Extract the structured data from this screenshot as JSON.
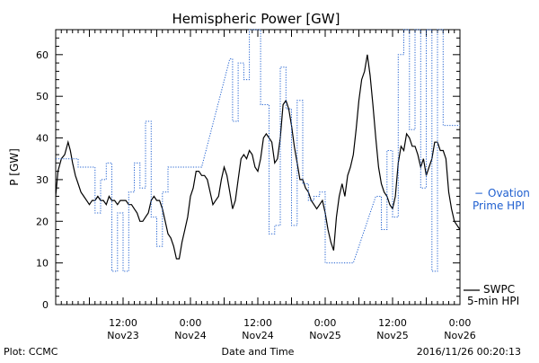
{
  "chart_data": {
    "type": "line",
    "title": "Hemispheric Power [GW]",
    "ylabel": "P [GW]",
    "xlabel": "Date and Time",
    "ylim": [
      0,
      66
    ],
    "xlim_hours": [
      0,
      72
    ],
    "yticks": [
      0,
      10,
      20,
      30,
      40,
      50,
      60
    ],
    "xticks": [
      {
        "hour": 12,
        "time": "12:00",
        "date": "Nov23"
      },
      {
        "hour": 24,
        "time": "0:00",
        "date": "Nov24"
      },
      {
        "hour": 36,
        "time": "12:00",
        "date": "Nov24"
      },
      {
        "hour": 48,
        "time": "0:00",
        "date": "Nov25"
      },
      {
        "hour": 60,
        "time": "12:00",
        "date": "Nov25"
      },
      {
        "hour": 72,
        "time": "0:00",
        "date": "Nov26"
      }
    ],
    "series": [
      {
        "name": "SWPC 5-min HPI",
        "color": "#000000",
        "style": "solid",
        "points": [
          [
            0,
            26
          ],
          [
            0.4,
            32
          ],
          [
            1,
            35
          ],
          [
            1.6,
            36
          ],
          [
            2.2,
            39
          ],
          [
            2.6,
            37
          ],
          [
            3,
            34
          ],
          [
            3.5,
            31
          ],
          [
            4,
            29
          ],
          [
            4.5,
            27
          ],
          [
            5,
            26
          ],
          [
            5.5,
            25
          ],
          [
            6,
            24
          ],
          [
            6.5,
            25
          ],
          [
            7,
            25
          ],
          [
            7.5,
            26
          ],
          [
            8,
            25
          ],
          [
            8.5,
            25
          ],
          [
            9,
            24
          ],
          [
            9.5,
            26
          ],
          [
            10,
            25
          ],
          [
            10.5,
            25
          ],
          [
            11,
            24
          ],
          [
            11.5,
            25
          ],
          [
            12,
            25
          ],
          [
            12.5,
            25
          ],
          [
            13,
            24
          ],
          [
            13.5,
            24
          ],
          [
            14,
            23
          ],
          [
            14.5,
            22
          ],
          [
            15,
            20
          ],
          [
            15.5,
            20
          ],
          [
            16,
            21
          ],
          [
            16.5,
            22
          ],
          [
            17,
            25
          ],
          [
            17.5,
            26
          ],
          [
            18,
            25
          ],
          [
            18.5,
            25
          ],
          [
            19,
            23
          ],
          [
            19.5,
            20
          ],
          [
            20,
            17
          ],
          [
            20.5,
            16
          ],
          [
            21,
            14
          ],
          [
            21.5,
            11
          ],
          [
            22,
            11
          ],
          [
            22.5,
            15
          ],
          [
            23,
            18
          ],
          [
            23.5,
            21
          ],
          [
            24,
            26
          ],
          [
            24.5,
            28
          ],
          [
            25,
            32
          ],
          [
            25.5,
            32
          ],
          [
            26,
            31
          ],
          [
            26.5,
            31
          ],
          [
            27,
            30
          ],
          [
            27.5,
            27
          ],
          [
            28,
            24
          ],
          [
            28.5,
            25
          ],
          [
            29,
            26
          ],
          [
            29.5,
            30
          ],
          [
            30,
            33
          ],
          [
            30.5,
            31
          ],
          [
            31,
            27
          ],
          [
            31.5,
            23
          ],
          [
            32,
            25
          ],
          [
            32.5,
            30
          ],
          [
            33,
            35
          ],
          [
            33.5,
            36
          ],
          [
            34,
            35
          ],
          [
            34.5,
            37
          ],
          [
            35,
            36
          ],
          [
            35.5,
            33
          ],
          [
            36,
            32
          ],
          [
            36.5,
            35
          ],
          [
            37,
            40
          ],
          [
            37.5,
            41
          ],
          [
            38,
            40
          ],
          [
            38.5,
            39
          ],
          [
            39,
            34
          ],
          [
            39.5,
            35
          ],
          [
            40,
            40
          ],
          [
            40.5,
            48
          ],
          [
            41,
            49
          ],
          [
            41.5,
            47
          ],
          [
            42,
            43
          ],
          [
            42.5,
            38
          ],
          [
            43,
            34
          ],
          [
            43.5,
            30
          ],
          [
            44,
            30
          ],
          [
            44.5,
            28
          ],
          [
            45,
            27
          ],
          [
            45.5,
            25
          ],
          [
            46,
            24
          ],
          [
            46.5,
            23
          ],
          [
            47,
            24
          ],
          [
            47.5,
            25
          ],
          [
            48,
            22
          ],
          [
            48.5,
            18
          ],
          [
            49,
            15
          ],
          [
            49.5,
            13
          ],
          [
            50,
            21
          ],
          [
            50.5,
            26
          ],
          [
            51,
            29
          ],
          [
            51.5,
            26
          ],
          [
            52,
            31
          ],
          [
            52.5,
            33
          ],
          [
            53,
            36
          ],
          [
            53.5,
            42
          ],
          [
            54,
            49
          ],
          [
            54.5,
            54
          ],
          [
            55,
            56
          ],
          [
            55.5,
            60
          ],
          [
            56,
            55
          ],
          [
            56.5,
            48
          ],
          [
            57,
            40
          ],
          [
            57.5,
            33
          ],
          [
            58,
            29
          ],
          [
            58.5,
            27
          ],
          [
            59,
            26
          ],
          [
            59.5,
            24
          ],
          [
            60,
            23
          ],
          [
            60.5,
            26
          ],
          [
            61,
            34
          ],
          [
            61.5,
            38
          ],
          [
            62,
            37
          ],
          [
            62.5,
            41
          ],
          [
            63,
            40
          ],
          [
            63.5,
            38
          ],
          [
            64,
            38
          ],
          [
            64.5,
            36
          ],
          [
            65,
            33
          ],
          [
            65.5,
            35
          ],
          [
            66,
            31
          ],
          [
            66.5,
            33
          ],
          [
            67,
            35
          ],
          [
            67.5,
            39
          ],
          [
            68,
            39
          ],
          [
            68.5,
            37
          ],
          [
            69,
            37
          ],
          [
            69.5,
            35
          ],
          [
            70,
            27
          ],
          [
            70.5,
            23
          ],
          [
            71,
            20
          ],
          [
            71.5,
            19
          ],
          [
            72,
            18
          ]
        ]
      },
      {
        "name": "Ovation Prime HPI",
        "color": "#2060d0",
        "style": "dotted",
        "points": [
          [
            0,
            35
          ],
          [
            4,
            35
          ],
          [
            4,
            33
          ],
          [
            7,
            33
          ],
          [
            7,
            22
          ],
          [
            8,
            22
          ],
          [
            8,
            30
          ],
          [
            9,
            30
          ],
          [
            9,
            34
          ],
          [
            10,
            34
          ],
          [
            10,
            8
          ],
          [
            11,
            8
          ],
          [
            11,
            22
          ],
          [
            12,
            22
          ],
          [
            12,
            8
          ],
          [
            13,
            8
          ],
          [
            13,
            27
          ],
          [
            14,
            27
          ],
          [
            14,
            34
          ],
          [
            15,
            34
          ],
          [
            15,
            28
          ],
          [
            16,
            28
          ],
          [
            16,
            44
          ],
          [
            17,
            44
          ],
          [
            17,
            21
          ],
          [
            18,
            21
          ],
          [
            18,
            14
          ],
          [
            19,
            14
          ],
          [
            19,
            27
          ],
          [
            20,
            27
          ],
          [
            20,
            33
          ],
          [
            26,
            33
          ],
          [
            31,
            59
          ],
          [
            31.5,
            59
          ],
          [
            31.5,
            44
          ],
          [
            32.5,
            44
          ],
          [
            32.5,
            58
          ],
          [
            33.5,
            58
          ],
          [
            33.5,
            54
          ],
          [
            34.5,
            54
          ],
          [
            34.5,
            66
          ],
          [
            36.5,
            66
          ],
          [
            36.5,
            48
          ],
          [
            38,
            48
          ],
          [
            38,
            17
          ],
          [
            39,
            17
          ],
          [
            39,
            19
          ],
          [
            40,
            19
          ],
          [
            40,
            57
          ],
          [
            41,
            57
          ],
          [
            41,
            47
          ],
          [
            42,
            47
          ],
          [
            42,
            19
          ],
          [
            43,
            19
          ],
          [
            43,
            49
          ],
          [
            44,
            49
          ],
          [
            44,
            29
          ],
          [
            45,
            29
          ],
          [
            45,
            25
          ],
          [
            46,
            25
          ],
          [
            46,
            26
          ],
          [
            47,
            26
          ],
          [
            47,
            27
          ],
          [
            48,
            27
          ],
          [
            48,
            10
          ],
          [
            53,
            10
          ],
          [
            57,
            26
          ],
          [
            58,
            26
          ],
          [
            58,
            18
          ],
          [
            59,
            18
          ],
          [
            59,
            37
          ],
          [
            60,
            37
          ],
          [
            60,
            21
          ],
          [
            61,
            21
          ],
          [
            61,
            60
          ],
          [
            62,
            60
          ],
          [
            62,
            66
          ],
          [
            63,
            66
          ],
          [
            63,
            42
          ],
          [
            64,
            42
          ],
          [
            64,
            66
          ],
          [
            65,
            66
          ],
          [
            65,
            28
          ],
          [
            66,
            28
          ],
          [
            66,
            66
          ],
          [
            67,
            66
          ],
          [
            67,
            8
          ],
          [
            68,
            8
          ],
          [
            68,
            66
          ],
          [
            69,
            66
          ],
          [
            69,
            43
          ],
          [
            72,
            43
          ]
        ]
      }
    ],
    "legend": [
      {
        "name": "Ovation Prime HPI",
        "line1": "Ovation",
        "line2": "Prime HPI",
        "color": "#2060d0"
      },
      {
        "name": "SWPC 5-min HPI",
        "line1": "SWPC",
        "line2": "5-min HPI",
        "color": "#000000"
      }
    ],
    "footer": {
      "left": "Plot: CCMC",
      "center": "Date and Time",
      "right": "2016/11/26 00:20:13"
    }
  }
}
